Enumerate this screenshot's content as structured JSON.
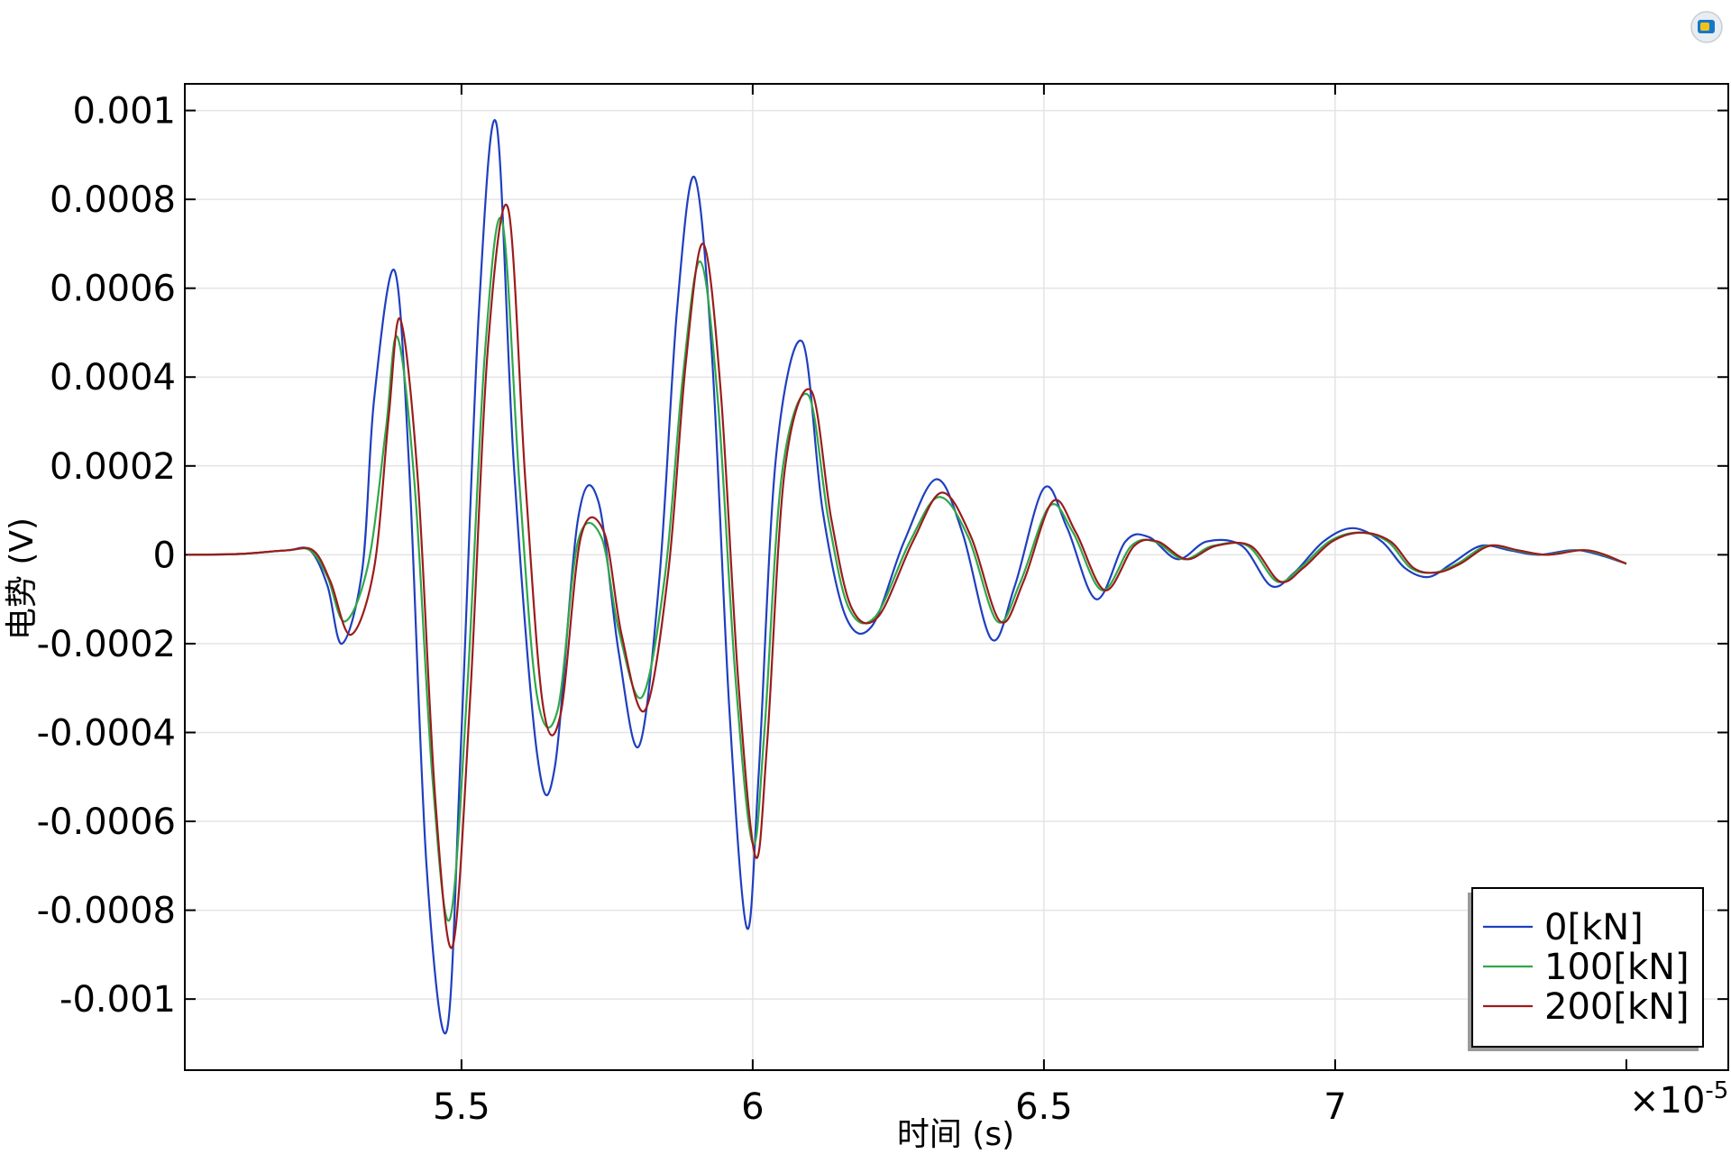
{
  "chart_data": {
    "type": "line",
    "xlabel": "时间 (s)",
    "ylabel": "电势 (V)",
    "x_multiplier": "×10",
    "x_multiplier_exp": "-5",
    "xlim": [
      5.025,
      7.675
    ],
    "ylim": [
      -0.00116,
      0.00106
    ],
    "x_ticks": [
      5.5,
      6,
      6.5,
      7
    ],
    "x_tick_labels": [
      "5.5",
      "6",
      "6.5",
      "7"
    ],
    "y_ticks": [
      0.001,
      0.0008,
      0.0006,
      0.0004,
      0.0002,
      0,
      -0.0002,
      -0.0004,
      -0.0006,
      -0.0008,
      -0.001
    ],
    "y_tick_labels": [
      "0.001",
      "0.0008",
      "0.0006",
      "0.0004",
      "0.0002",
      "0",
      "-0.0002",
      "-0.0004",
      "-0.0006",
      "-0.0008",
      "-0.001"
    ],
    "grid": true,
    "legend_position": "bottom-right",
    "series": [
      {
        "name": "0[kN]",
        "color": "#1f3fbf",
        "x": [
          5.03,
          5.12,
          5.2,
          5.24,
          5.27,
          5.295,
          5.33,
          5.35,
          5.385,
          5.41,
          5.44,
          5.475,
          5.5,
          5.53,
          5.56,
          5.59,
          5.63,
          5.66,
          5.7,
          5.735,
          5.77,
          5.805,
          5.84,
          5.87,
          5.9,
          5.93,
          5.96,
          5.99,
          6.01,
          6.04,
          6.085,
          6.12,
          6.16,
          6.205,
          6.26,
          6.315,
          6.36,
          6.41,
          6.45,
          6.5,
          6.54,
          6.59,
          6.64,
          6.68,
          6.73,
          6.78,
          6.84,
          6.89,
          6.93,
          6.98,
          7.03,
          7.08,
          7.12,
          7.16,
          7.2,
          7.25,
          7.3,
          7.35,
          7.42,
          7.5
        ],
        "y": [
          0,
          2e-06,
          1e-05,
          1e-05,
          -7e-05,
          -0.0002,
          -3e-05,
          0.00035,
          0.00064,
          0.0002,
          -0.0007,
          -0.00107,
          -0.0004,
          0.00055,
          0.00097,
          0.0002,
          -0.00045,
          -0.00048,
          8e-05,
          0.00012,
          -0.00022,
          -0.00043,
          -5e-05,
          0.00055,
          0.00085,
          0.00045,
          -0.00035,
          -0.00084,
          -0.0005,
          0.00022,
          0.00048,
          0.0001,
          -0.00014,
          -0.00016,
          3e-05,
          0.00017,
          5e-05,
          -0.00019,
          -7e-05,
          0.00015,
          6e-05,
          -0.0001,
          3e-05,
          4e-05,
          -1e-05,
          3e-05,
          2e-05,
          -7e-05,
          -4e-05,
          3e-05,
          6e-05,
          3e-05,
          -3e-05,
          -5e-05,
          -2e-05,
          2e-05,
          1e-05,
          0,
          1e-05,
          -2e-05
        ]
      },
      {
        "name": "100[kN]",
        "color": "#2fa84a",
        "x": [
          5.03,
          5.12,
          5.2,
          5.24,
          5.27,
          5.3,
          5.34,
          5.37,
          5.39,
          5.42,
          5.45,
          5.48,
          5.51,
          5.54,
          5.57,
          5.6,
          5.63,
          5.665,
          5.7,
          5.74,
          5.77,
          5.81,
          5.85,
          5.88,
          5.91,
          5.94,
          5.97,
          6.0,
          6.02,
          6.05,
          6.095,
          6.13,
          6.165,
          6.21,
          6.27,
          6.32,
          6.37,
          6.42,
          6.46,
          6.51,
          6.55,
          6.6,
          6.65,
          6.69,
          6.74,
          6.79,
          6.85,
          6.9,
          6.94,
          6.99,
          7.04,
          7.09,
          7.13,
          7.17,
          7.21,
          7.26,
          7.31,
          7.36,
          7.43,
          7.5
        ],
        "y": [
          0,
          2e-06,
          1e-05,
          1e-05,
          -5e-05,
          -0.00015,
          -2e-05,
          0.00028,
          0.00049,
          0.00015,
          -0.0005,
          -0.00082,
          -0.0003,
          0.00045,
          0.00075,
          0.00015,
          -0.00032,
          -0.00035,
          3e-05,
          4e-05,
          -0.00017,
          -0.00032,
          -4e-05,
          0.0004,
          0.00066,
          0.00035,
          -0.00027,
          -0.00065,
          -0.0004,
          0.00018,
          0.00036,
          8e-05,
          -0.00012,
          -0.00014,
          3e-05,
          0.00013,
          4e-05,
          -0.00015,
          -6e-05,
          0.00011,
          5e-05,
          -8e-05,
          2e-05,
          3e-05,
          -1e-05,
          2e-05,
          2e-05,
          -6e-05,
          -3e-05,
          3e-05,
          5e-05,
          3e-05,
          -3e-05,
          -4e-05,
          -2e-05,
          2e-05,
          1e-05,
          0,
          1e-05,
          -2e-05
        ]
      },
      {
        "name": "200[kN]",
        "color": "#9b1c1c",
        "x": [
          5.03,
          5.12,
          5.2,
          5.245,
          5.275,
          5.31,
          5.35,
          5.375,
          5.395,
          5.425,
          5.455,
          5.485,
          5.515,
          5.545,
          5.58,
          5.61,
          5.64,
          5.67,
          5.705,
          5.745,
          5.775,
          5.815,
          5.855,
          5.885,
          5.915,
          5.945,
          5.975,
          6.005,
          6.025,
          6.055,
          6.1,
          6.135,
          6.17,
          6.215,
          6.275,
          6.325,
          6.375,
          6.425,
          6.465,
          6.515,
          6.555,
          6.605,
          6.655,
          6.695,
          6.745,
          6.795,
          6.855,
          6.905,
          6.945,
          6.995,
          7.045,
          7.095,
          7.135,
          7.175,
          7.215,
          7.265,
          7.315,
          7.365,
          7.435,
          7.5
        ],
        "y": [
          0,
          2e-06,
          1e-05,
          1e-05,
          -6e-05,
          -0.00018,
          -3e-05,
          0.00031,
          0.00053,
          0.00017,
          -0.00055,
          -0.00088,
          -0.00032,
          0.00046,
          0.00078,
          0.00016,
          -0.00034,
          -0.00036,
          4e-05,
          5e-05,
          -0.00018,
          -0.00035,
          -4e-05,
          0.00043,
          0.0007,
          0.00037,
          -0.00028,
          -0.00068,
          -0.00042,
          0.00019,
          0.00037,
          8e-05,
          -0.00012,
          -0.00014,
          3e-05,
          0.00014,
          4e-05,
          -0.00015,
          -6e-05,
          0.00012,
          5e-05,
          -8e-05,
          2e-05,
          3e-05,
          -1e-05,
          2e-05,
          2e-05,
          -6e-05,
          -3e-05,
          3e-05,
          5e-05,
          3e-05,
          -3e-05,
          -4e-05,
          -2e-05,
          2e-05,
          1e-05,
          0,
          1e-05,
          -2e-05
        ]
      }
    ]
  }
}
